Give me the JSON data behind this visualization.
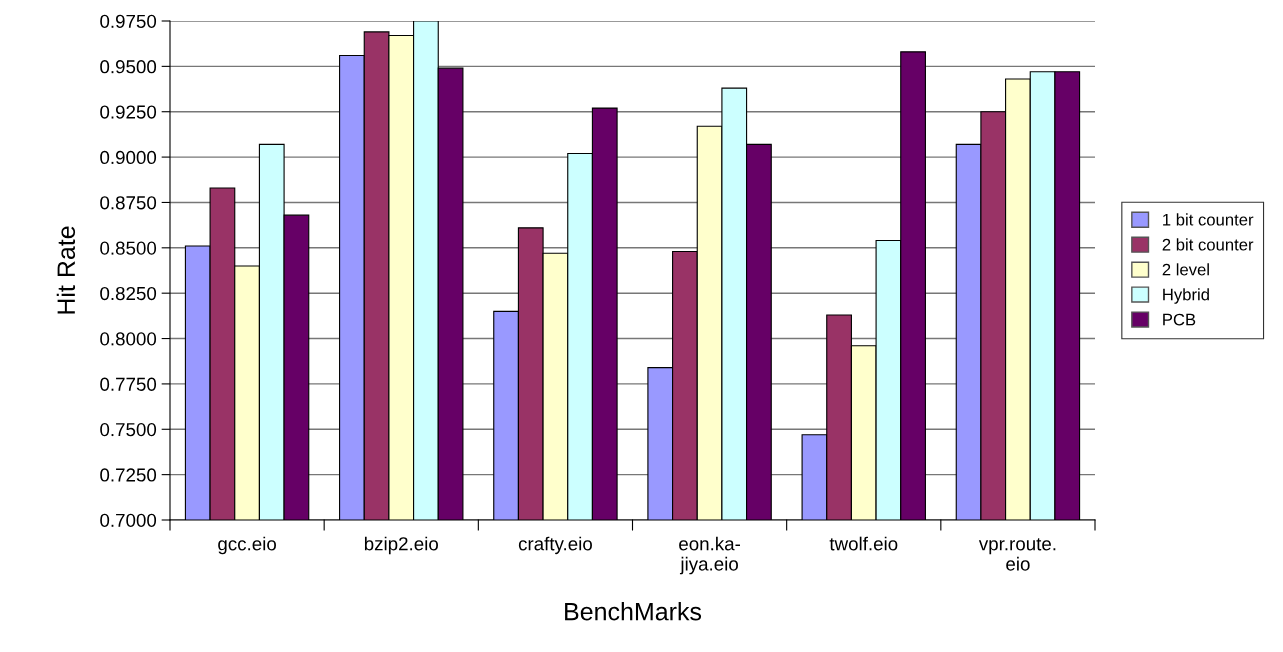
{
  "chart_data": {
    "type": "bar",
    "xlabel": "BenchMarks",
    "ylabel": "Hit Rate",
    "categories": [
      "gcc.eio",
      "bzip2.eio",
      "crafty.eio",
      "eon.ka-\njiya.eio",
      "twolf.eio",
      "vpr.route.\neio"
    ],
    "series": [
      {
        "name": "1 bit counter",
        "color": "#9999ff",
        "values": [
          0.851,
          0.956,
          0.815,
          0.784,
          0.747,
          0.907
        ]
      },
      {
        "name": "2 bit counter",
        "color": "#993366",
        "values": [
          0.883,
          0.969,
          0.861,
          0.848,
          0.813,
          0.925
        ]
      },
      {
        "name": "2 level",
        "color": "#ffffcc",
        "values": [
          0.84,
          0.967,
          0.847,
          0.917,
          0.796,
          0.943
        ]
      },
      {
        "name": "Hybrid",
        "color": "#ccffff",
        "values": [
          0.907,
          0.975,
          0.902,
          0.938,
          0.854,
          0.947
        ]
      },
      {
        "name": "PCB",
        "color": "#660066",
        "values": [
          0.868,
          0.949,
          0.927,
          0.907,
          0.958,
          0.947
        ]
      }
    ],
    "ylim": [
      0.7,
      0.975
    ],
    "yticks": [
      {
        "value": 0.7,
        "label": "0.7000"
      },
      {
        "value": 0.725,
        "label": "0.7250"
      },
      {
        "value": 0.75,
        "label": "0.7500"
      },
      {
        "value": 0.775,
        "label": "0.7750"
      },
      {
        "value": 0.8,
        "label": "0.8000"
      },
      {
        "value": 0.825,
        "label": "0.8250"
      },
      {
        "value": 0.85,
        "label": "0.8500"
      },
      {
        "value": 0.875,
        "label": "0.8750"
      },
      {
        "value": 0.9,
        "label": "0.9000"
      },
      {
        "value": 0.925,
        "label": "0.9250"
      },
      {
        "value": 0.95,
        "label": "0.9500"
      },
      {
        "value": 0.975,
        "label": "0.9750"
      }
    ],
    "grid": "y",
    "legend": "right"
  }
}
